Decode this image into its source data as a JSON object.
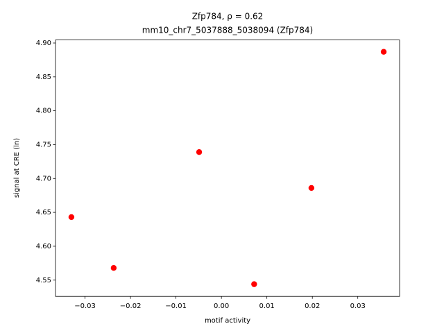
{
  "chart_data": {
    "type": "scatter",
    "title": "Zfp784, ρ = 0.62",
    "subtitle": "mm10_chr7_5037888_5038094 (Zfp784)",
    "x_label": "motif activity",
    "y_label": "signal at CRE (ln)",
    "color": "#ff0000",
    "x": [
      -0.033,
      -0.0237,
      -0.0049,
      0.0072,
      0.0198,
      0.0357
    ],
    "values": [
      4.643,
      4.568,
      4.739,
      4.544,
      4.686,
      4.887
    ],
    "xlim": [
      -0.0365,
      0.0392
    ],
    "ylim": [
      4.526,
      4.9045
    ],
    "xticks": [
      {
        "value": -0.03,
        "label": "−0.03"
      },
      {
        "value": -0.02,
        "label": "−0.02"
      },
      {
        "value": -0.01,
        "label": "−0.01"
      },
      {
        "value": 0,
        "label": "0.00"
      },
      0.01,
      0.02,
      0.03
    ],
    "yticks": [
      4.55,
      {
        "value": 4.6,
        "label": "4.60"
      },
      4.65,
      {
        "value": 4.7,
        "label": "4.70"
      },
      4.75,
      {
        "value": 4.8,
        "label": "4.80"
      },
      4.85,
      {
        "value": 4.9,
        "label": "4.90"
      }
    ],
    "grid": false
  }
}
